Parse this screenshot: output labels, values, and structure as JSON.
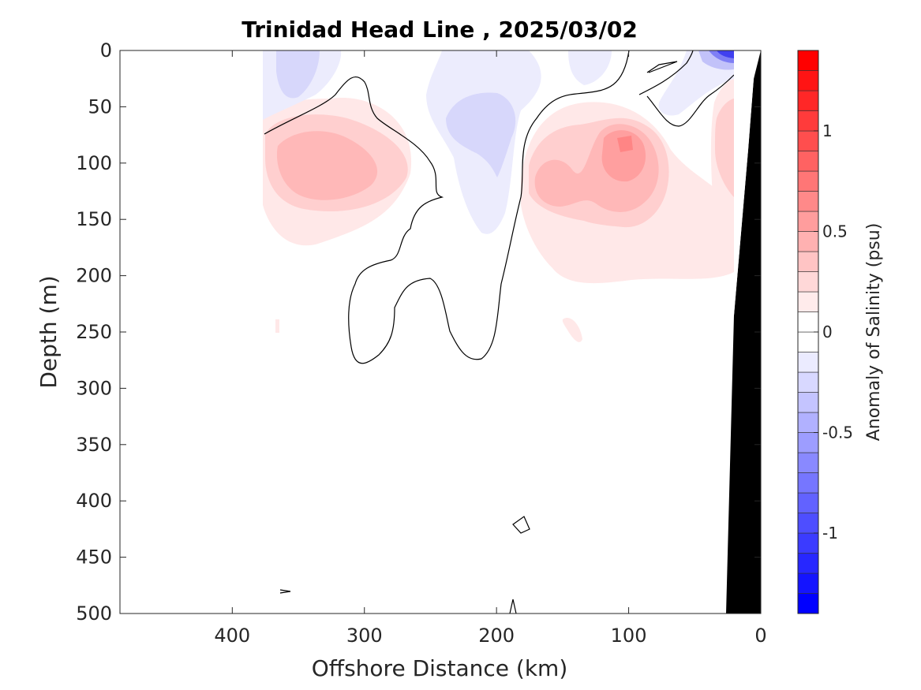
{
  "chart_data": {
    "type": "heatmap",
    "subtype": "filled-contour-section",
    "title": "Trinidad Head Line , 2025/03/02",
    "xlabel": "Offshore Distance (km)",
    "ylabel": "Depth (m)",
    "x_reversed": true,
    "y_reversed": true,
    "xlim": [
      0,
      485
    ],
    "ylim": [
      0,
      500
    ],
    "xticks": [
      400,
      300,
      200,
      100,
      0
    ],
    "yticks": [
      0,
      50,
      100,
      150,
      200,
      250,
      300,
      350,
      400,
      450,
      500
    ],
    "colorbar": {
      "label": "Anomaly of Salinity (psu)",
      "range": [
        -1.4,
        1.4
      ],
      "step": 0.1,
      "ticks": [
        -1,
        -0.5,
        0,
        0.5,
        1
      ],
      "colors": {
        "negative": "#0000ff",
        "zero": "#ffffff",
        "positive": "#ff0000"
      }
    },
    "zero_contour_color": "#000000",
    "bathymetry_color": "#000000",
    "regions": [
      {
        "name": "positive anomaly offshore",
        "x_range": [
          380,
          260
        ],
        "depth_range": [
          60,
          180
        ],
        "max_value": 0.3
      },
      {
        "name": "positive anomaly nearshore",
        "x_range": [
          185,
          70
        ],
        "depth_range": [
          60,
          215
        ],
        "max_value": 0.5
      },
      {
        "name": "positive anomaly near coast",
        "x_range": [
          35,
          20
        ],
        "depth_range": [
          40,
          210
        ],
        "max_value": 0.3
      },
      {
        "name": "negative anomaly surface offshore",
        "x_range": [
          380,
          330
        ],
        "depth_range": [
          0,
          60
        ],
        "max_value": -0.1
      },
      {
        "name": "negative anomaly mid section",
        "x_range": [
          270,
          170
        ],
        "depth_range": [
          0,
          165
        ],
        "max_value": -0.2
      },
      {
        "name": "negative anomaly coastal surface",
        "x_range": [
          45,
          20
        ],
        "depth_range": [
          0,
          20
        ],
        "max_value": -0.8
      }
    ]
  }
}
